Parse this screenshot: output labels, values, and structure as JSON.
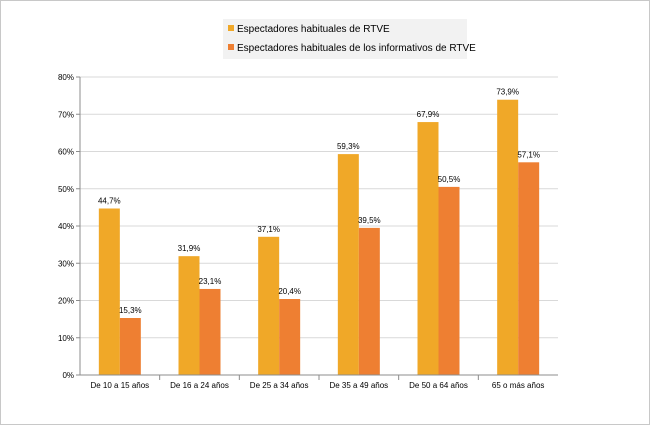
{
  "chart_data": {
    "type": "bar",
    "categories": [
      "De 10 a 15 años",
      "De 16 a 24 años",
      "De 25 a 34 años",
      "De 35 a 49 años",
      "De 50 a 64 años",
      "65 o más años"
    ],
    "series": [
      {
        "name": "Espectadores habituales de RTVE",
        "values": [
          44.7,
          31.9,
          37.1,
          59.3,
          67.9,
          73.9
        ],
        "labels": [
          "44,7%",
          "31,9%",
          "37,1%",
          "59,3%",
          "67,9%",
          "73,9%"
        ],
        "color": "#f0a828"
      },
      {
        "name": "Espectadores habituales de los informativos de RTVE",
        "values": [
          15.3,
          23.1,
          20.4,
          39.5,
          50.5,
          57.1
        ],
        "labels": [
          "15,3%",
          "23,1%",
          "20,4%",
          "39,5%",
          "50,5%",
          "57,1%"
        ],
        "color": "#ee7f32"
      }
    ],
    "ylim": [
      0,
      80
    ],
    "yticks": [
      "0%",
      "10%",
      "20%",
      "30%",
      "40%",
      "50%",
      "60%",
      "70%",
      "80%"
    ],
    "grid": true,
    "legend": "top-center"
  }
}
